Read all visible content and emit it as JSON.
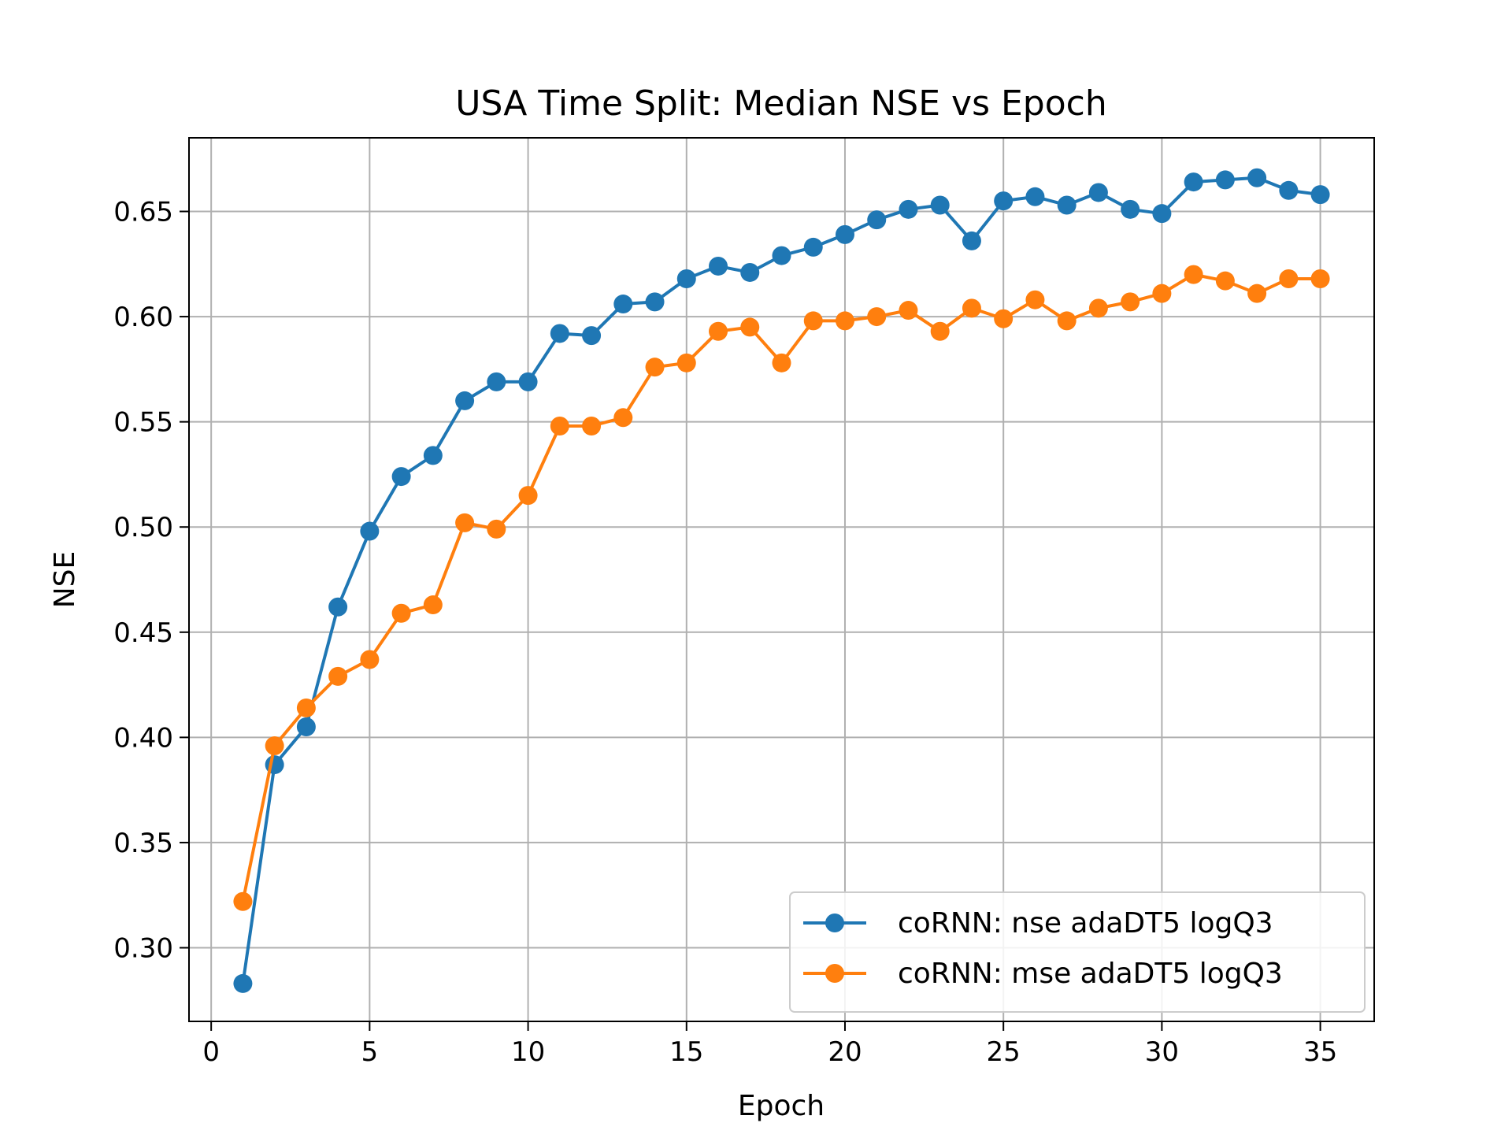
{
  "chart_data": {
    "type": "line",
    "title": "USA Time Split: Median NSE vs Epoch",
    "xlabel": "Epoch",
    "ylabel": "NSE",
    "xlim": [
      -0.7,
      36.7
    ],
    "ylim": [
      0.265,
      0.685
    ],
    "xticks": [
      0,
      5,
      10,
      15,
      20,
      25,
      30,
      35
    ],
    "yticks": [
      0.3,
      0.35,
      0.4,
      0.45,
      0.5,
      0.55,
      0.6,
      0.65
    ],
    "xtick_labels": [
      "0",
      "5",
      "10",
      "15",
      "20",
      "25",
      "30",
      "35"
    ],
    "ytick_labels": [
      "0.30",
      "0.35",
      "0.40",
      "0.45",
      "0.50",
      "0.55",
      "0.60",
      "0.65"
    ],
    "grid": true,
    "legend_position": "lower-right",
    "x": [
      1,
      2,
      3,
      4,
      5,
      6,
      7,
      8,
      9,
      10,
      11,
      12,
      13,
      14,
      15,
      16,
      17,
      18,
      19,
      20,
      21,
      22,
      23,
      24,
      25,
      26,
      27,
      28,
      29,
      30,
      31,
      32,
      33,
      34,
      35
    ],
    "series": [
      {
        "name": "coRNN: nse adaDT5 logQ3",
        "color": "#1f77b4",
        "values": [
          0.283,
          0.387,
          0.405,
          0.462,
          0.498,
          0.524,
          0.534,
          0.56,
          0.569,
          0.569,
          0.592,
          0.591,
          0.606,
          0.607,
          0.618,
          0.624,
          0.621,
          0.629,
          0.633,
          0.639,
          0.646,
          0.651,
          0.653,
          0.636,
          0.655,
          0.657,
          0.653,
          0.659,
          0.651,
          0.649,
          0.664,
          0.665,
          0.666,
          0.66,
          0.658
        ]
      },
      {
        "name": "coRNN: mse adaDT5 logQ3",
        "color": "#ff7f0e",
        "values": [
          0.322,
          0.396,
          0.414,
          0.429,
          0.437,
          0.459,
          0.463,
          0.502,
          0.499,
          0.515,
          0.548,
          0.548,
          0.552,
          0.576,
          0.578,
          0.593,
          0.595,
          0.578,
          0.598,
          0.598,
          0.6,
          0.603,
          0.593,
          0.604,
          0.599,
          0.608,
          0.598,
          0.604,
          0.607,
          0.611,
          0.62,
          0.617,
          0.611,
          0.618,
          0.618
        ]
      }
    ]
  }
}
